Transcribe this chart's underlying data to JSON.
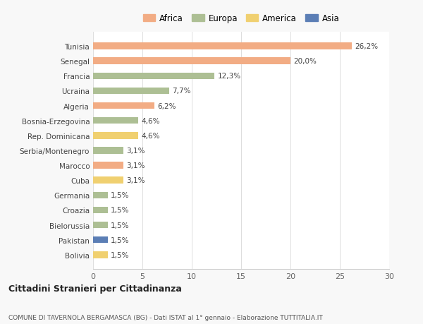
{
  "categories": [
    "Bolivia",
    "Pakistan",
    "Bielorussia",
    "Croazia",
    "Germania",
    "Cuba",
    "Marocco",
    "Serbia/Montenegro",
    "Rep. Dominicana",
    "Bosnia-Erzegovina",
    "Algeria",
    "Ucraina",
    "Francia",
    "Senegal",
    "Tunisia"
  ],
  "values": [
    1.5,
    1.5,
    1.5,
    1.5,
    1.5,
    3.1,
    3.1,
    3.1,
    4.6,
    4.6,
    6.2,
    7.7,
    12.3,
    20.0,
    26.2
  ],
  "labels": [
    "1,5%",
    "1,5%",
    "1,5%",
    "1,5%",
    "1,5%",
    "3,1%",
    "3,1%",
    "3,1%",
    "4,6%",
    "4,6%",
    "6,2%",
    "7,7%",
    "12,3%",
    "20,0%",
    "26,2%"
  ],
  "continent": [
    "America",
    "Asia",
    "Europa",
    "Europa",
    "Europa",
    "America",
    "Africa",
    "Europa",
    "America",
    "Europa",
    "Africa",
    "Europa",
    "Europa",
    "Africa",
    "Africa"
  ],
  "colors": {
    "Africa": "#F2AC84",
    "Europa": "#ADBF94",
    "America": "#F0D070",
    "Asia": "#5B7EB5"
  },
  "legend_order": [
    "Africa",
    "Europa",
    "America",
    "Asia"
  ],
  "title": "Cittadini Stranieri per Cittadinanza",
  "subtitle": "COMUNE DI TAVERNOLA BERGAMASCA (BG) - Dati ISTAT al 1° gennaio - Elaborazione TUTTITALIA.IT",
  "xlim": [
    0,
    30
  ],
  "xticks": [
    0,
    5,
    10,
    15,
    20,
    25,
    30
  ],
  "bg_color": "#f8f8f8",
  "plot_bg_color": "#ffffff"
}
